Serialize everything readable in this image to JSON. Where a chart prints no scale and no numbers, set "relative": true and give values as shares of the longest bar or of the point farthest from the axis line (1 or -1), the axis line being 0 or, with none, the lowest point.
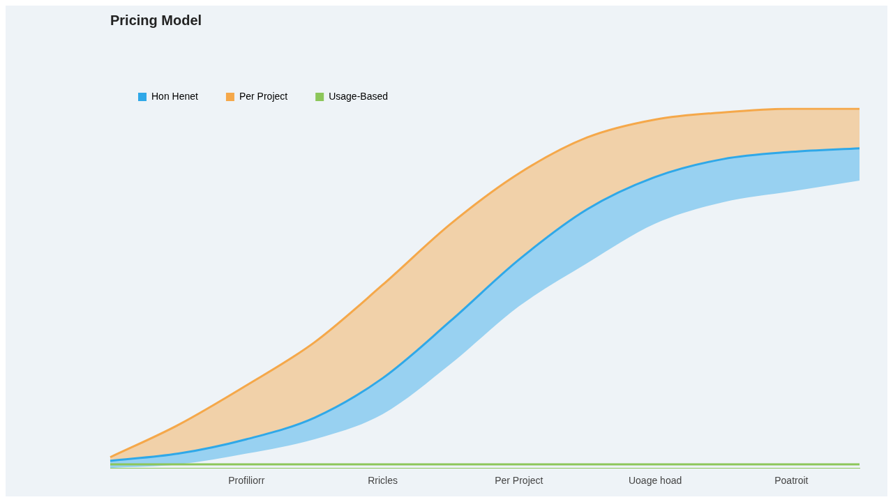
{
  "chart_data": {
    "type": "line",
    "title": "Pricing Model",
    "relative": true,
    "legend": "top left",
    "marker": "none",
    "categories": [
      null,
      null,
      "Profiliorr",
      null,
      "Rricles",
      null,
      "Per Project",
      null,
      "Uoage hoad",
      null,
      "Poatroit",
      null
    ],
    "series": [
      {
        "name": "Hon Henet",
        "color": "#2fa8e8",
        "values": [
          0.02,
          0.04,
          0.08,
          0.14,
          0.25,
          0.41,
          0.58,
          0.72,
          0.81,
          0.86,
          0.88,
          0.89
        ],
        "lower": [
          0.0,
          0.01,
          0.04,
          0.08,
          0.15,
          0.29,
          0.45,
          0.57,
          0.68,
          0.74,
          0.77,
          0.8
        ],
        "upper": [
          0.02,
          0.04,
          0.08,
          0.14,
          0.25,
          0.41,
          0.58,
          0.72,
          0.81,
          0.86,
          0.88,
          0.89
        ]
      },
      {
        "name": "Per Project",
        "type": "area",
        "color": "#f5a84a",
        "values": [
          0.03,
          0.12,
          0.23,
          0.35,
          0.51,
          0.68,
          0.82,
          0.92,
          0.97,
          0.99,
          1.0,
          1.0
        ]
      },
      {
        "name": "Usage-Based",
        "color": "#8cc65a",
        "values": [
          0.01,
          0.01,
          0.01,
          0.01,
          0.01,
          0.01,
          0.01,
          0.01,
          0.01,
          0.01,
          0.01,
          0.01
        ]
      }
    ]
  }
}
